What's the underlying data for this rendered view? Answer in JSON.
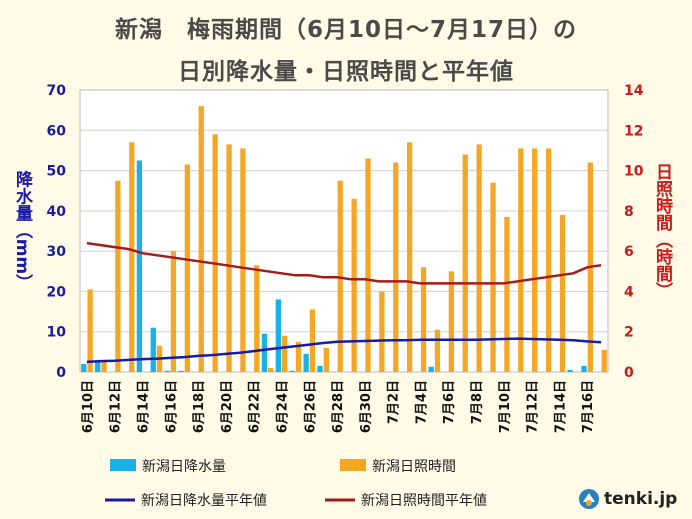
{
  "header": {
    "title_line1": "新潟　梅雨期間（6月10日～7月17日）の",
    "title_line2": "日別降水量・日照時間と平年値"
  },
  "brand": {
    "name": "tenki.jp"
  },
  "colors": {
    "precip_bar": "#1ab0e8",
    "sunshine_bar": "#f5a623",
    "precip_normal": "#1a1aa8",
    "sunshine_normal": "#a31b1b",
    "left_axis_text": "#1a1aa8",
    "right_axis_text": "#cc1a1a"
  },
  "chart_data": {
    "type": "bar",
    "categories": [
      "6月10日",
      "6月11日",
      "6月12日",
      "6月13日",
      "6月14日",
      "6月15日",
      "6月16日",
      "6月17日",
      "6月18日",
      "6月19日",
      "6月20日",
      "6月21日",
      "6月22日",
      "6月23日",
      "6月24日",
      "6月25日",
      "6月26日",
      "6月27日",
      "6月28日",
      "6月29日",
      "6月30日",
      "7月1日",
      "7月2日",
      "7月3日",
      "7月4日",
      "7月5日",
      "7月6日",
      "7月7日",
      "7月8日",
      "7月9日",
      "7月10日",
      "7月11日",
      "7月12日",
      "7月13日",
      "7月14日",
      "7月15日",
      "7月16日",
      "7月17日"
    ],
    "x_tick_labels": [
      "6月10日",
      "6月12日",
      "6月14日",
      "6月16日",
      "6月18日",
      "6月20日",
      "6月22日",
      "6月24日",
      "6月26日",
      "6月28日",
      "6月30日",
      "7月2日",
      "7月4日",
      "7月6日",
      "7月8日",
      "7月10日",
      "7月12日",
      "7月14日",
      "7月16日"
    ],
    "ylabel_left": "降水量（mm）",
    "ylabel_right": "日照時間（時間）",
    "ylim_left": [
      0,
      70
    ],
    "yticks_left": [
      0,
      10,
      20,
      30,
      40,
      50,
      60,
      70
    ],
    "ylim_right": [
      0,
      14
    ],
    "yticks_right": [
      0,
      2,
      4,
      6,
      8,
      10,
      12,
      14
    ],
    "grid": true,
    "legend_position": "bottom",
    "series": [
      {
        "name": "新潟日降水量",
        "kind": "bar",
        "axis": "left",
        "values": [
          2,
          3,
          0,
          0,
          52.5,
          11,
          0.3,
          0.3,
          0,
          0,
          0,
          0,
          0,
          9.5,
          18,
          0.3,
          4.5,
          1.5,
          0,
          0,
          0,
          0,
          0,
          0,
          0,
          1.3,
          0,
          0,
          0,
          0,
          0,
          0,
          0,
          0,
          0,
          0.5,
          1.5,
          0
        ]
      },
      {
        "name": "新潟日照時間",
        "kind": "bar",
        "axis": "right",
        "values": [
          4.1,
          0.5,
          9.5,
          11.4,
          0,
          1.3,
          6.0,
          10.3,
          13.2,
          11.8,
          11.3,
          11.1,
          5.3,
          0.2,
          1.8,
          1.5,
          3.1,
          1.2,
          9.5,
          8.6,
          10.6,
          4.0,
          10.4,
          11.4,
          5.2,
          2.1,
          5.0,
          10.8,
          11.3,
          9.4,
          7.7,
          11.1,
          11.1,
          11.1,
          7.8,
          0,
          10.4,
          1.1
        ]
      },
      {
        "name": "新潟日降水量平年値",
        "kind": "line",
        "axis": "left",
        "values": [
          2.5,
          2.7,
          2.8,
          3.0,
          3.2,
          3.3,
          3.5,
          3.7,
          4.0,
          4.2,
          4.5,
          4.8,
          5.2,
          5.6,
          6.0,
          6.4,
          6.8,
          7.2,
          7.5,
          7.6,
          7.7,
          7.8,
          7.9,
          7.9,
          8.0,
          8.0,
          8.0,
          8.0,
          8.0,
          8.1,
          8.2,
          8.3,
          8.2,
          8.1,
          8.0,
          7.9,
          7.6,
          7.4
        ]
      },
      {
        "name": "新潟日照時間平年値",
        "kind": "line",
        "axis": "right",
        "values": [
          6.4,
          6.3,
          6.2,
          6.1,
          5.9,
          5.8,
          5.7,
          5.6,
          5.5,
          5.4,
          5.3,
          5.2,
          5.1,
          5.0,
          4.9,
          4.8,
          4.8,
          4.7,
          4.7,
          4.6,
          4.6,
          4.5,
          4.5,
          4.5,
          4.4,
          4.4,
          4.4,
          4.4,
          4.4,
          4.4,
          4.4,
          4.5,
          4.6,
          4.7,
          4.8,
          4.9,
          5.2,
          5.3
        ]
      }
    ]
  }
}
